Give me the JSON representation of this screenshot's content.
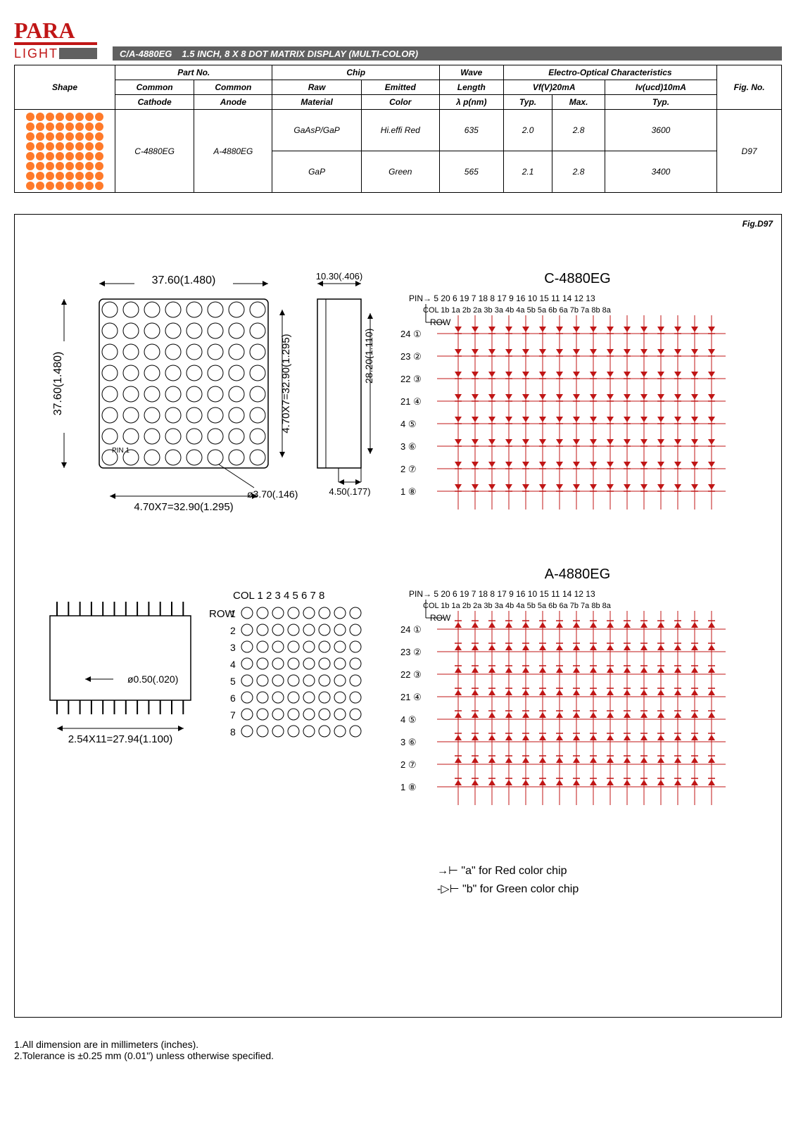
{
  "logo": {
    "top_text": "PARA",
    "bottom_text": "LIGHT",
    "top_color": "#c01616",
    "bottom_color": "#c01616",
    "rule_color": "#c01616"
  },
  "title": {
    "part_no": "C/A-4880EG",
    "desc": "1.5 INCH, 8 X 8 DOT MATRIX DISPLAY (MULTI-COLOR)"
  },
  "table": {
    "headers": {
      "shape": "Shape",
      "part_no": "Part No.",
      "common_cathode": "Common\nCathode",
      "common_anode": "Common\nAnode",
      "chip": "Chip",
      "raw_material": "Raw\nMaterial",
      "emitted_color": "Emitted\nColor",
      "wave_length": "Wave\nLength\nλp(nm)",
      "eoc": "Electro-Optical Characteristics",
      "vf": "Vf(V)20mA",
      "typ": "Typ.",
      "max": "Max.",
      "iv": "Iv(ucd)10mA",
      "fig_no": "Fig. No."
    },
    "rows": [
      {
        "cathode": "C-4880EG",
        "anode": "A-4880EG",
        "material": "GaAsP/GaP",
        "color": "Hi.effi Red",
        "wavelength": "635",
        "vf_typ": "2.0",
        "vf_max": "2.8",
        "iv_typ": "3600",
        "fig": "D97"
      },
      {
        "material": "GaP",
        "color": "Green",
        "wavelength": "565",
        "vf_typ": "2.1",
        "vf_max": "2.8",
        "iv_typ": "3400"
      }
    ]
  },
  "figure": {
    "label": "Fig.D97",
    "c_title": "C-4880EG",
    "a_title": "A-4880EG",
    "dims": {
      "body_w": "37.60(1.480)",
      "body_h": "37.60(1.480)",
      "pitch_horiz": "4.70X7=32.90(1.295)",
      "pitch_vert": "4.70X7=32.90(1.295)",
      "side_w": "10.30(.406)",
      "side_h": "28.20(1.110)",
      "dot_dia": "ø3.70(.146)",
      "corner": "4.50(.177)",
      "pin_dia": "ø0.50(.020)",
      "pin_pitch": "2.54X11=27.94(1.100)"
    },
    "matrix_label": {
      "col": "COL 1  2  3  4  5  6  7  8",
      "row": "ROW"
    },
    "pin_top": "PIN→  5 20 6 19 7 18 8 17 9 16 10 15 11 14 12 13",
    "col_top": "COL 1b 1a 2b 2a 3b 3a 4b 4a 5b 5a 6b 6a 7b 7a 8b 8a",
    "row_labels": [
      "24 ①",
      "23 ②",
      "22 ③",
      "21 ④",
      "4  ⑤",
      "3  ⑥",
      "2  ⑦",
      "1  ⑧"
    ],
    "legend_a": "→⊢ \"a\" for Red color chip",
    "legend_b": "-▷⊢ \"b\" for Green color chip"
  },
  "footer": {
    "l1": "1.All dimension are in millimeters (inches).",
    "l2": "2.Tolerance is  ±0.25 mm (0.01\") unless otherwise specified."
  },
  "style": {
    "shape_dot_color": "#ff7a2a",
    "schem_red": "#c01616"
  }
}
